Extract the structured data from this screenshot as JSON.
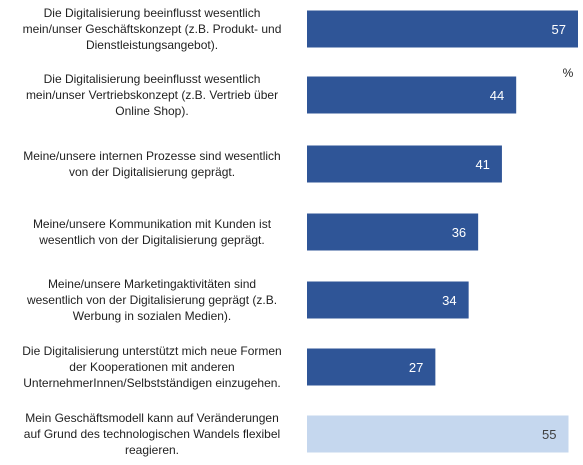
{
  "chart_data": {
    "type": "bar",
    "orientation": "horizontal",
    "unit": "%",
    "xlim": [
      0,
      57
    ],
    "categories": [
      [
        "Die Digitalisierung beeinflusst wesentlich",
        "mein/unser Geschäftskonzept (z.B. Produkt- und",
        "Dienstleistungsangebot)."
      ],
      [
        "Die Digitalisierung beeinflusst wesentlich",
        "mein/unser Vertriebskonzept (z.B. Vertrieb über",
        "Online Shop)."
      ],
      [
        "Meine/unsere internen Prozesse sind wesentlich",
        "von der Digitalisierung geprägt."
      ],
      [
        "Meine/unsere Kommunikation mit Kunden ist",
        "wesentlich von der Digitalisierung geprägt."
      ],
      [
        "Meine/unsere Marketingaktivitäten sind",
        "wesentlich von der Digitalisierung geprägt (z.B.",
        "Werbung in sozialen Medien)."
      ],
      [
        "Die Digitalisierung unterstützt mich neue Formen",
        "der Kooperationen mit anderen",
        "UnternehmerInnen/Selbstständigen einzugehen."
      ],
      [
        "Mein Geschäftsmodell kann auf Veränderungen",
        "auf Grund des technologischen Wandels flexibel",
        "reagieren."
      ]
    ],
    "values": [
      57,
      44,
      41,
      36,
      34,
      27,
      55
    ],
    "group": [
      "main",
      "main",
      "main",
      "main",
      "main",
      "main",
      "light"
    ],
    "colors": {
      "main": "#2f5597",
      "light": "#c5d7ee",
      "label_main": "#ffffff",
      "label_light": "#404040",
      "text": "#1f1f1f"
    },
    "title": "",
    "xlabel": "",
    "ylabel": "",
    "legend": "none",
    "grid": false
  }
}
